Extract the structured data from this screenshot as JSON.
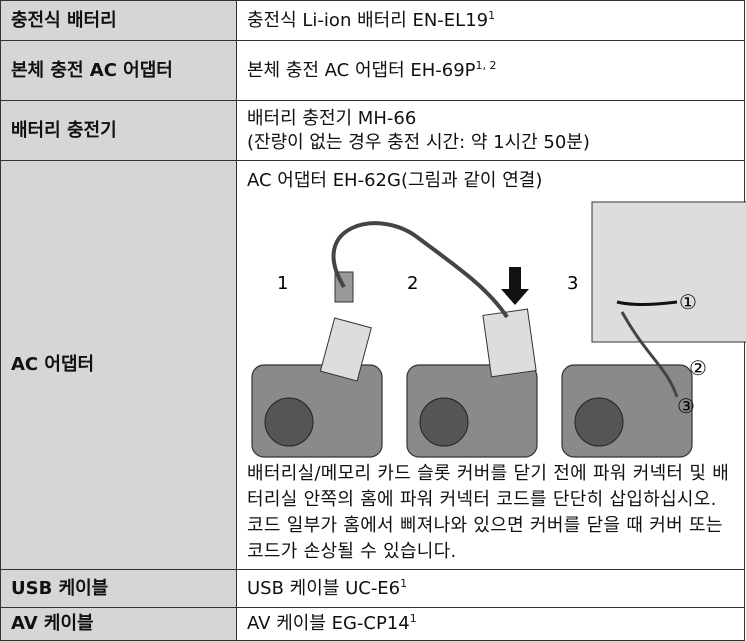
{
  "table": {
    "rows": [
      {
        "label": "충전식 배터리",
        "text": "충전식 Li-ion 배터리 EN-EL19",
        "note": "1"
      },
      {
        "label": "본체 충전 AC 어댑터",
        "text": "본체 충전 AC 어댑터 EH-69P",
        "note": "1, 2"
      },
      {
        "label": "배터리 충전기",
        "lines": [
          "배터리 충전기 MH-66",
          "(잔량이 없는 경우 충전 시간: 약 1시간 50분)"
        ]
      },
      {
        "label": "AC 어댑터",
        "text": "AC 어댑터 EH-62G(그림과 같이 연결)",
        "figure": {
          "steps": [
            "1",
            "2",
            "3"
          ],
          "callouts": [
            "①",
            "②",
            "③"
          ]
        },
        "description": "배터리실/메모리 카드 슬롯 커버를 닫기 전에 파워 커넥터 및 배터리실 안쪽의 홈에 파워 커넥터 코드를 단단히 삽입하십시오. 코드 일부가 홈에서 삐져나와 있으면 커버를 닫을 때 커버 또는 코드가 손상될 수 있습니다."
      },
      {
        "label": "USB 케이블",
        "text": "USB 케이블 UC-E6",
        "note": "1"
      },
      {
        "label": "AV 케이블",
        "text": "AV 케이블 EG-CP14",
        "note": "1"
      }
    ]
  }
}
